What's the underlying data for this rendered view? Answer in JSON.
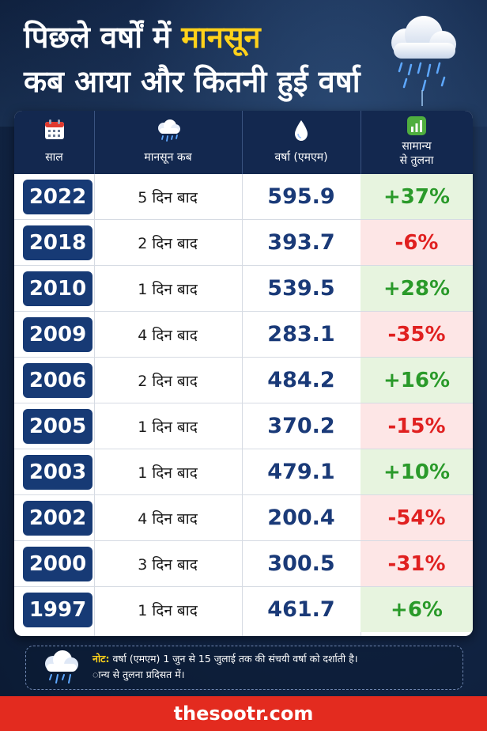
{
  "title": {
    "line1_prefix": "पिछले वर्षों में ",
    "line1_highlight": "मानसून",
    "line2": "कब आया और कितनी हुई वर्षा"
  },
  "table": {
    "headers": {
      "year": "साल",
      "monsoon_when": "मानसून कब",
      "rainfall": "वर्षा (एमएम)",
      "comparison_line1": "सामान्य",
      "comparison_line2": "से तुलना"
    },
    "rows": [
      {
        "year": "2022",
        "after": "5 दिन बाद",
        "rain": "595.9",
        "cmp": "+37%"
      },
      {
        "year": "2018",
        "after": "2 दिन बाद",
        "rain": "393.7",
        "cmp": "-6%"
      },
      {
        "year": "2010",
        "after": "1 दिन बाद",
        "rain": "539.5",
        "cmp": "+28%"
      },
      {
        "year": "2009",
        "after": "4 दिन बाद",
        "rain": "283.1",
        "cmp": "-35%"
      },
      {
        "year": "2006",
        "after": "2 दिन बाद",
        "rain": "484.2",
        "cmp": "+16%"
      },
      {
        "year": "2005",
        "after": "1 दिन बाद",
        "rain": "370.2",
        "cmp": "-15%"
      },
      {
        "year": "2003",
        "after": "1 दिन बाद",
        "rain": "479.1",
        "cmp": "+10%"
      },
      {
        "year": "2002",
        "after": "4 दिन बाद",
        "rain": "200.4",
        "cmp": "-54%"
      },
      {
        "year": "2000",
        "after": "3 दिन बाद",
        "rain": "300.5",
        "cmp": "-31%"
      },
      {
        "year": "1997",
        "after": "1 दिन बाद",
        "rain": "461.7",
        "cmp": "+6%"
      }
    ]
  },
  "note": {
    "label": "नोट:",
    "line1": " वर्षा (एमएम) 1 जुन से 15 जुलाई तक की संचयी वर्षा को दर्शाती है।",
    "line2": "ान्य से तुलना प्रदिसत में।"
  },
  "footer": {
    "brand": "thesootr.com"
  },
  "colors": {
    "background": "#14284a",
    "header_bg": "#13284f",
    "year_box": "#173a75",
    "highlight": "#ffd21a",
    "positive": "#2a9a2a",
    "negative": "#e02020",
    "footer": "#e32b1f"
  },
  "icons": [
    "rain-cloud-icon",
    "calendar-icon",
    "rain-cloud-icon",
    "water-drop-icon",
    "bar-chart-icon"
  ]
}
